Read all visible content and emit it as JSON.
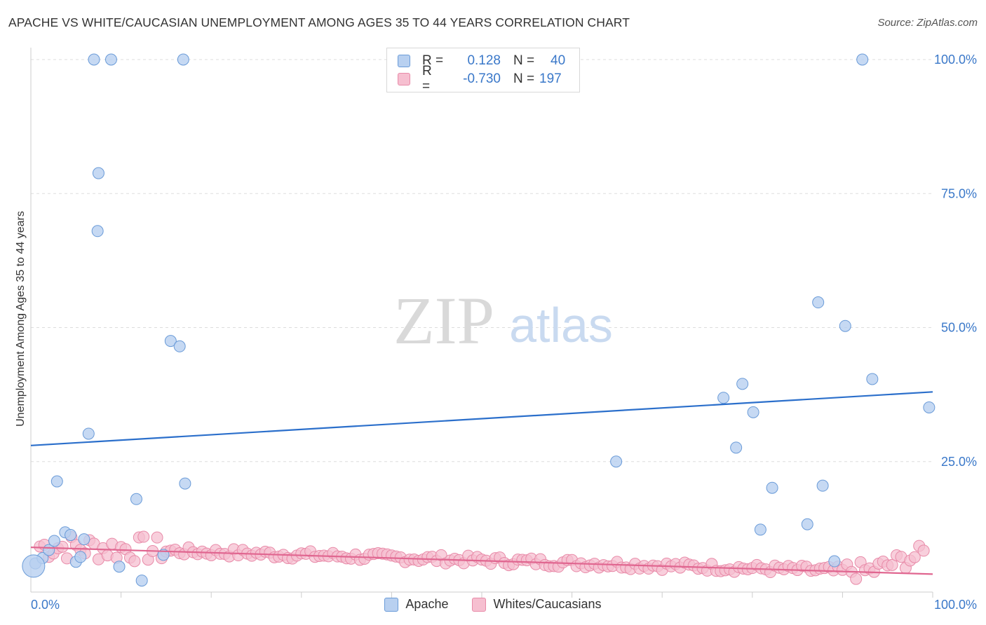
{
  "title": "APACHE VS WHITE/CAUCASIAN UNEMPLOYMENT AMONG AGES 35 TO 44 YEARS CORRELATION CHART",
  "source": "Source: ZipAtlas.com",
  "watermark": {
    "zip": "ZIP",
    "atlas": "atlas"
  },
  "colors": {
    "apache_fill": "#b8d0f0",
    "apache_stroke": "#6a9bd8",
    "apache_line": "#2b6fcb",
    "white_fill": "#f6bfd0",
    "white_stroke": "#e88aa8",
    "white_line": "#e06690",
    "axis_text": "#3a78c9",
    "grid": "#dddddd"
  },
  "legend": {
    "r_label": "R =",
    "n_label": "N =",
    "rows": [
      {
        "series": "Apache",
        "r": "0.128",
        "n": "40"
      },
      {
        "series": "Whites/Caucasians",
        "r": "-0.730",
        "n": "197"
      }
    ]
  },
  "chart_data": {
    "type": "scatter",
    "title": "APACHE VS WHITE/CAUCASIAN UNEMPLOYMENT AMONG AGES 35 TO 44 YEARS CORRELATION CHART",
    "xlabel": "",
    "ylabel": "Unemployment Among Ages 35 to 44 years",
    "xlim": [
      0,
      100
    ],
    "ylim": [
      0,
      100
    ],
    "x_tick_labels": [
      "0.0%",
      "100.0%"
    ],
    "y_ticks": [
      25,
      50,
      75,
      100
    ],
    "y_tick_labels": [
      "25.0%",
      "50.0%",
      "75.0%",
      "100.0%"
    ],
    "series": [
      {
        "name": "Apache",
        "r": 0.128,
        "n": 40,
        "trend": {
          "x": [
            0,
            100
          ],
          "y": [
            28.0,
            38.0
          ]
        },
        "points": [
          [
            0.5,
            6.0
          ],
          [
            1.3,
            7.0
          ],
          [
            2.0,
            8.5
          ],
          [
            2.6,
            10.2
          ],
          [
            2.9,
            21.3
          ],
          [
            3.8,
            11.8
          ],
          [
            4.4,
            11.3
          ],
          [
            5.0,
            6.3
          ],
          [
            5.5,
            7.2
          ],
          [
            5.9,
            10.5
          ],
          [
            6.4,
            30.2
          ],
          [
            7.0,
            100.0
          ],
          [
            7.5,
            78.8
          ],
          [
            8.9,
            100.0
          ],
          [
            7.4,
            68.0
          ],
          [
            9.8,
            5.4
          ],
          [
            11.7,
            18.0
          ],
          [
            12.3,
            2.8
          ],
          [
            14.7,
            7.6
          ],
          [
            15.5,
            47.5
          ],
          [
            16.5,
            46.5
          ],
          [
            16.9,
            100.0
          ],
          [
            17.1,
            20.9
          ],
          [
            64.9,
            25.0
          ],
          [
            76.8,
            36.9
          ],
          [
            78.2,
            27.6
          ],
          [
            78.9,
            39.5
          ],
          [
            80.1,
            34.2
          ],
          [
            80.9,
            12.3
          ],
          [
            82.2,
            20.1
          ],
          [
            86.1,
            13.3
          ],
          [
            87.3,
            54.7
          ],
          [
            87.8,
            20.5
          ],
          [
            89.1,
            6.4
          ],
          [
            90.3,
            50.3
          ],
          [
            92.2,
            100.0
          ],
          [
            93.3,
            40.4
          ],
          [
            99.6,
            35.1
          ]
        ],
        "large_point": [
          0.3,
          5.5
        ]
      },
      {
        "name": "Whites/Caucasians",
        "r": -0.73,
        "n": 197,
        "trend": {
          "x": [
            0,
            100
          ],
          "y": [
            9.0,
            4.0
          ]
        }
      }
    ]
  }
}
